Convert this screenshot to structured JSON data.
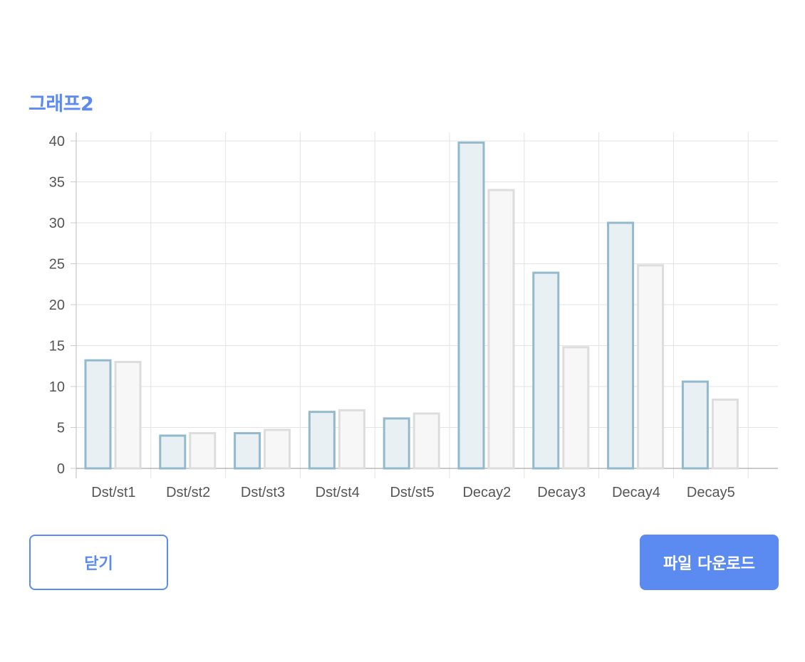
{
  "header": {
    "title": "그래프2"
  },
  "chart_data": {
    "type": "bar",
    "categories": [
      "Dst/st1",
      "Dst/st2",
      "Dst/st3",
      "Dst/st4",
      "Dst/st5",
      "Decay2",
      "Decay3",
      "Decay4",
      "Decay5"
    ],
    "series": [
      {
        "values": [
          13.2,
          4.0,
          4.3,
          6.9,
          6.1,
          39.8,
          23.9,
          30.0,
          10.6
        ]
      },
      {
        "values": [
          13.0,
          4.3,
          4.7,
          7.1,
          6.7,
          34.0,
          14.8,
          24.8,
          8.4
        ]
      }
    ],
    "series_colors": [
      {
        "fill": "#e8f0f4",
        "stroke": "#93bacc"
      },
      {
        "fill": "#f7f7f7",
        "stroke": "#dddddd"
      }
    ],
    "ylim": [
      0,
      40
    ],
    "yticks": [
      0,
      5,
      10,
      15,
      20,
      25,
      30,
      35,
      40
    ],
    "grid": true,
    "legend": "none"
  },
  "actions": {
    "close_label": "닫기",
    "download_label": "파일 다운로드"
  }
}
